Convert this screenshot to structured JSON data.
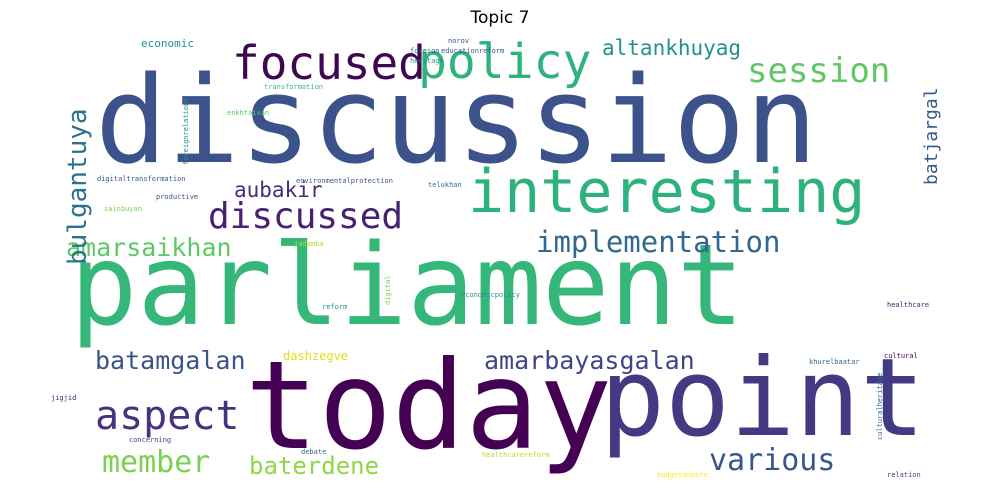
{
  "title": "Topic 7",
  "words": [
    {
      "text": "parliament",
      "color": "#35b779"
    },
    {
      "text": "discussion",
      "color": "#3b528b"
    },
    {
      "text": "today",
      "color": "#440154"
    },
    {
      "text": "point",
      "color": "#443983"
    },
    {
      "text": "interesting",
      "color": "#2db27d"
    },
    {
      "text": "policy",
      "color": "#2eb37c"
    },
    {
      "text": "focused",
      "color": "#3e0751"
    },
    {
      "text": "session",
      "color": "#5ec962"
    },
    {
      "text": "discussed",
      "color": "#482173"
    },
    {
      "text": "implementation",
      "color": "#31688e"
    },
    {
      "text": "aspect",
      "color": "#46327e"
    },
    {
      "text": "member",
      "color": "#7ad151"
    },
    {
      "text": "various",
      "color": "#3a548c"
    },
    {
      "text": "baterdene",
      "color": "#8fd744"
    },
    {
      "text": "amarbayasgalan",
      "color": "#414487"
    },
    {
      "text": "batamgalan",
      "color": "#3b528b"
    },
    {
      "text": "amarsaikhan",
      "color": "#5ec962"
    },
    {
      "text": "bulgantuya",
      "color": "#2c728e"
    },
    {
      "text": "altankhuyag",
      "color": "#21918c"
    },
    {
      "text": "batjargal",
      "color": "#375a8c"
    },
    {
      "text": "aubakir",
      "color": "#472d7b"
    },
    {
      "text": "economic",
      "color": "#21918c"
    },
    {
      "text": "dashzegve",
      "color": "#dde318"
    },
    {
      "text": "norov",
      "color": "#3b528b"
    },
    {
      "text": "educationreform",
      "color": "#3b528b"
    },
    {
      "text": "foreign",
      "color": "#31688e"
    },
    {
      "text": "heritage",
      "color": "#21918c"
    },
    {
      "text": "transformation",
      "color": "#35b779"
    },
    {
      "text": "foreignrelations",
      "color": "#21918c"
    },
    {
      "text": "enkhtaivan",
      "color": "#5ec962"
    },
    {
      "text": "environmentalprotection",
      "color": "#3b528b"
    },
    {
      "text": "digitaltransformation",
      "color": "#3b528b"
    },
    {
      "text": "telukhan",
      "color": "#2c728e"
    },
    {
      "text": "productive",
      "color": "#3b528b"
    },
    {
      "text": "sainbuyan",
      "color": "#7ad151"
    },
    {
      "text": "jadamba",
      "color": "#b5de2b"
    },
    {
      "text": "digital",
      "color": "#7ad151"
    },
    {
      "text": "economicpolicy",
      "color": "#21918c"
    },
    {
      "text": "reform",
      "color": "#1f9e89"
    },
    {
      "text": "healthcare",
      "color": "#482173"
    },
    {
      "text": "khurelbaatar",
      "color": "#31688e"
    },
    {
      "text": "cultural",
      "color": "#440154"
    },
    {
      "text": "jigjid",
      "color": "#482878"
    },
    {
      "text": "concerning",
      "color": "#414487"
    },
    {
      "text": "debate",
      "color": "#31688e"
    },
    {
      "text": "healthcarereform",
      "color": "#b5de2b"
    },
    {
      "text": "budget",
      "color": "#472d7b"
    },
    {
      "text": "culturalheritage",
      "color": "#31688e"
    },
    {
      "text": "relation",
      "color": "#414487"
    },
    {
      "text": "budgetdebate",
      "color": "#fde725"
    }
  ]
}
